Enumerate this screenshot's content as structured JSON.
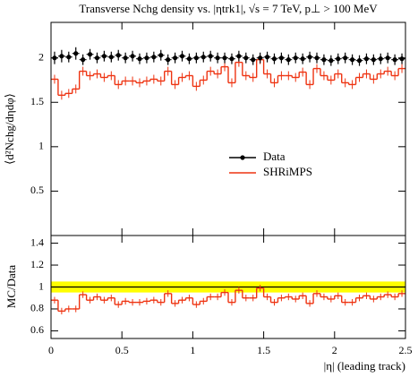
{
  "chart_data": [
    {
      "type": "histogram",
      "title": "Transverse Nchg density vs. |ηtrk1|, √s = 7 TeV, p⊥ > 100 MeV",
      "y_label": "⟨d²Nchg/dηdφ⟩",
      "bins": [
        0,
        0.05,
        0.1,
        0.15,
        0.2,
        0.25,
        0.3,
        0.35,
        0.4,
        0.45,
        0.5,
        0.55,
        0.6,
        0.65,
        0.7,
        0.75,
        0.8,
        0.85,
        0.9,
        0.95,
        1,
        1.05,
        1.1,
        1.15,
        1.2,
        1.25,
        1.3,
        1.35,
        1.4,
        1.45,
        1.5,
        1.55,
        1.6,
        1.65,
        1.7,
        1.75,
        1.8,
        1.85,
        1.9,
        1.95,
        2,
        2.05,
        2.1,
        2.15,
        2.2,
        2.25,
        2.3,
        2.35,
        2.4,
        2.45,
        2.5
      ],
      "xlim": [
        0,
        2.5
      ],
      "xticks": [
        0,
        0.5,
        1,
        1.5,
        2,
        2.5
      ],
      "ylim": [
        0,
        2.4
      ],
      "yticks": [
        0.5,
        1,
        1.5,
        2
      ],
      "series": [
        {
          "name": "Data",
          "color": "#000000",
          "style": "points",
          "values": [
            2.0,
            2.02,
            2.01,
            2.05,
            1.98,
            2.04,
            2.0,
            2.02,
            2.01,
            2.03,
            2.0,
            2.02,
            1.99,
            2.0,
            2.01,
            2.03,
            1.98,
            2.0,
            2.02,
            1.99,
            2.0,
            2.01,
            2.02,
            2.0,
            2.0,
            1.99,
            2.02,
            2.0,
            1.98,
            2.0,
            2.01,
            1.99,
            2.0,
            1.98,
            2.0,
            1.99,
            2.01,
            2.0,
            1.98,
            1.97,
            1.99,
            2.0,
            1.98,
            1.97,
            1.99,
            1.98,
            1.99,
            2.0,
            1.98,
            1.99
          ],
          "errors": [
            0.07,
            0.07,
            0.06,
            0.07,
            0.06,
            0.06,
            0.06,
            0.06,
            0.06,
            0.06,
            0.06,
            0.06,
            0.06,
            0.06,
            0.06,
            0.06,
            0.06,
            0.06,
            0.06,
            0.06,
            0.06,
            0.06,
            0.06,
            0.06,
            0.06,
            0.06,
            0.06,
            0.06,
            0.06,
            0.06,
            0.06,
            0.06,
            0.06,
            0.06,
            0.06,
            0.06,
            0.06,
            0.06,
            0.06,
            0.06,
            0.06,
            0.06,
            0.06,
            0.06,
            0.06,
            0.06,
            0.06,
            0.06,
            0.06,
            0.06
          ]
        },
        {
          "name": "SHRiMPS",
          "color": "#ee3311",
          "style": "steps",
          "values": [
            1.76,
            1.58,
            1.6,
            1.65,
            1.85,
            1.8,
            1.82,
            1.78,
            1.8,
            1.7,
            1.74,
            1.74,
            1.72,
            1.74,
            1.76,
            1.74,
            1.85,
            1.7,
            1.78,
            1.8,
            1.68,
            1.75,
            1.85,
            1.82,
            1.9,
            1.72,
            1.95,
            1.8,
            1.78,
            1.98,
            1.82,
            1.72,
            1.8,
            1.8,
            1.78,
            1.84,
            1.7,
            1.88,
            1.8,
            1.75,
            1.82,
            1.72,
            1.7,
            1.78,
            1.82,
            1.76,
            1.82,
            1.85,
            1.8,
            1.88
          ],
          "errors": [
            0.05,
            0.05,
            0.05,
            0.05,
            0.05,
            0.05,
            0.05,
            0.05,
            0.05,
            0.05,
            0.05,
            0.05,
            0.05,
            0.05,
            0.05,
            0.05,
            0.05,
            0.05,
            0.05,
            0.05,
            0.05,
            0.05,
            0.05,
            0.05,
            0.05,
            0.05,
            0.05,
            0.05,
            0.05,
            0.05,
            0.05,
            0.05,
            0.05,
            0.05,
            0.05,
            0.05,
            0.05,
            0.05,
            0.05,
            0.05,
            0.05,
            0.05,
            0.05,
            0.05,
            0.05,
            0.05,
            0.05,
            0.05,
            0.05,
            0.05
          ]
        }
      ]
    },
    {
      "type": "ratio",
      "y_label": "MC/Data",
      "x_label": "|η| (leading track)",
      "band": {
        "color": "#ffff00",
        "lower": 0.95,
        "upper": 1.05
      },
      "xlim": [
        0,
        2.5
      ],
      "xticks": [
        0,
        0.5,
        1,
        1.5,
        2,
        2.5
      ],
      "ylim": [
        0.53,
        1.47
      ],
      "yticks": [
        0.6,
        0.8,
        1,
        1.2,
        1.4
      ],
      "series": [
        {
          "color": "#ee3311",
          "values": [
            0.88,
            0.78,
            0.8,
            0.8,
            0.93,
            0.88,
            0.91,
            0.88,
            0.9,
            0.84,
            0.87,
            0.86,
            0.86,
            0.87,
            0.88,
            0.86,
            0.94,
            0.85,
            0.88,
            0.9,
            0.84,
            0.87,
            0.91,
            0.91,
            0.95,
            0.86,
            0.97,
            0.9,
            0.9,
            0.99,
            0.91,
            0.86,
            0.9,
            0.91,
            0.89,
            0.92,
            0.85,
            0.94,
            0.91,
            0.89,
            0.92,
            0.86,
            0.86,
            0.9,
            0.92,
            0.89,
            0.91,
            0.93,
            0.91,
            0.94
          ],
          "errors": [
            0.03,
            0.03,
            0.03,
            0.03,
            0.03,
            0.03,
            0.03,
            0.03,
            0.03,
            0.03,
            0.03,
            0.03,
            0.03,
            0.03,
            0.03,
            0.03,
            0.03,
            0.03,
            0.03,
            0.03,
            0.03,
            0.03,
            0.03,
            0.03,
            0.03,
            0.03,
            0.03,
            0.03,
            0.03,
            0.03,
            0.03,
            0.03,
            0.03,
            0.03,
            0.03,
            0.03,
            0.03,
            0.03,
            0.03,
            0.03,
            0.03,
            0.03,
            0.03,
            0.03,
            0.03,
            0.03,
            0.03,
            0.03,
            0.03,
            0.03
          ]
        }
      ]
    }
  ]
}
